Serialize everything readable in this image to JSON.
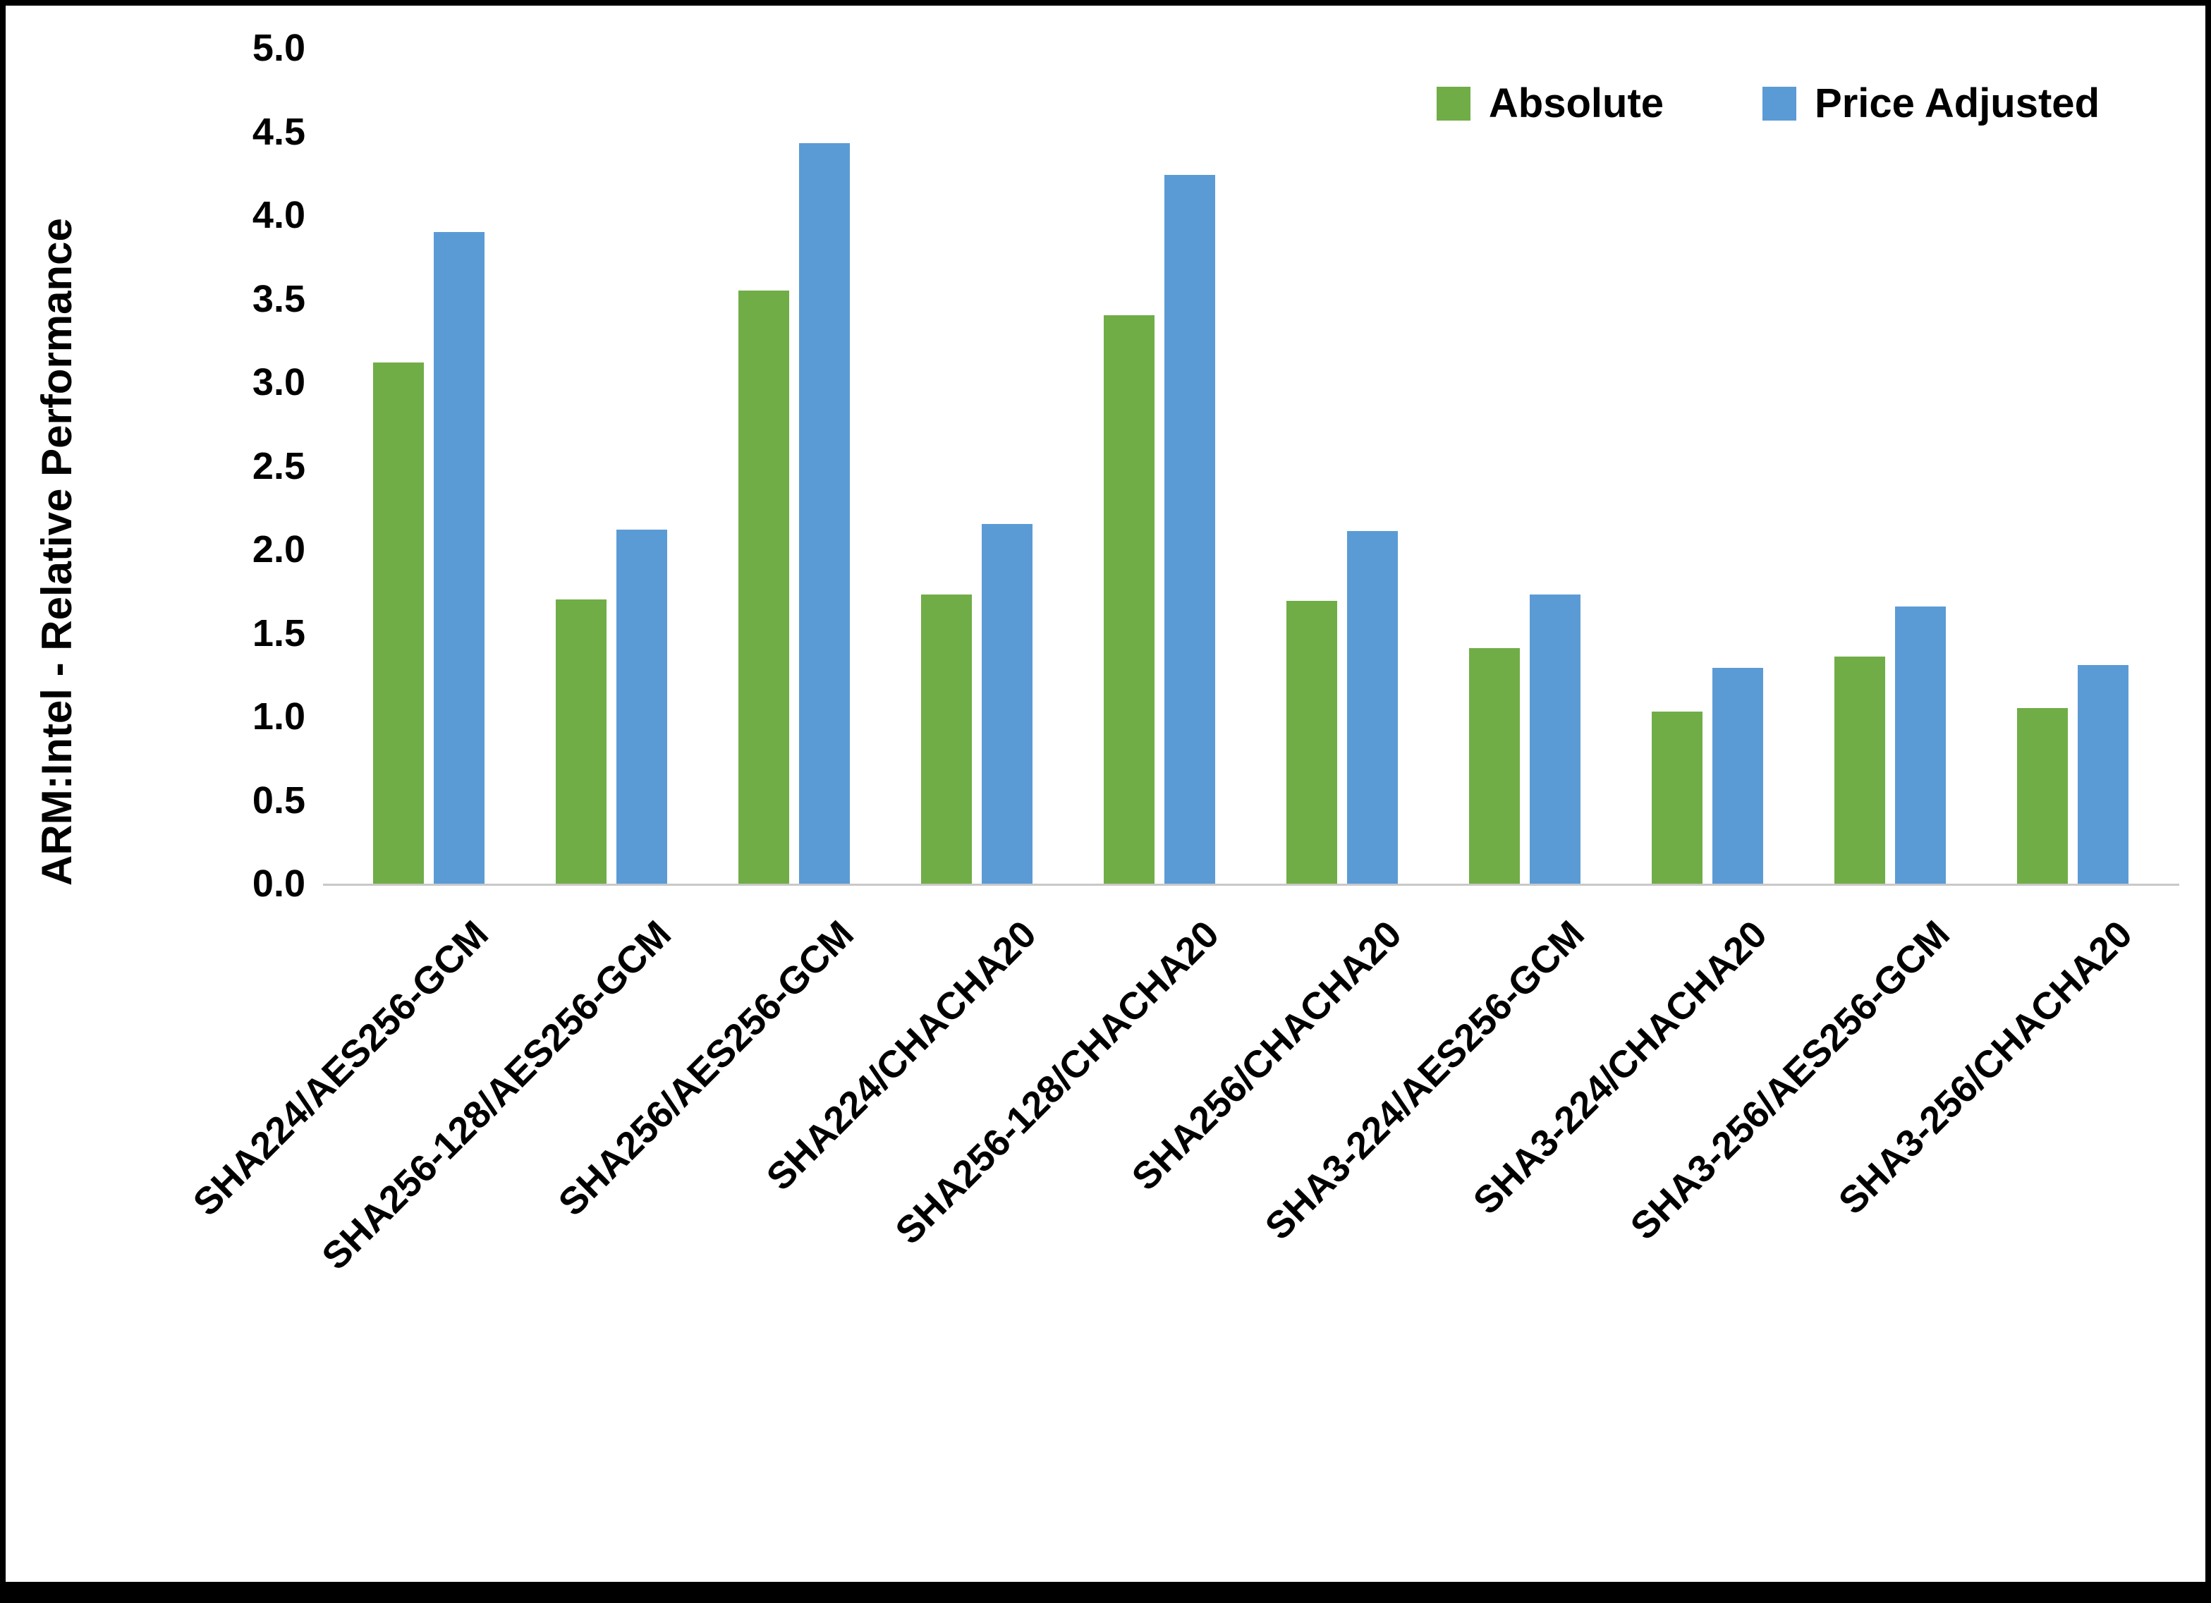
{
  "chart_data": {
    "type": "bar",
    "title": "",
    "xlabel": "",
    "ylabel": "ARM:Intel - Relative Performance",
    "ylim": [
      0,
      5
    ],
    "ytick_step": 0.5,
    "yticks": [
      "0.0",
      "0.5",
      "1.0",
      "1.5",
      "2.0",
      "2.5",
      "3.0",
      "3.5",
      "4.0",
      "4.5",
      "5.0"
    ],
    "grid": false,
    "legend_position": "top-right",
    "categories": [
      "SHA224/AES256-GCM",
      "SHA256-128/AES256-GCM",
      "SHA256/AES256-GCM",
      "SHA224/CHACHA20",
      "SHA256-128/CHACHA20",
      "SHA256/CHACHA20",
      "SHA3-224/AES256-GCM",
      "SHA3-224/CHACHA20",
      "SHA3-256/AES256-GCM",
      "SHA3-256/CHACHA20"
    ],
    "series": [
      {
        "name": "Absolute",
        "color": "#70AD47",
        "values": [
          3.12,
          1.7,
          3.55,
          1.73,
          3.4,
          1.69,
          1.41,
          1.03,
          1.36,
          1.05
        ]
      },
      {
        "name": "Price Adjusted",
        "color": "#5B9BD5",
        "values": [
          3.9,
          2.12,
          4.43,
          2.15,
          4.24,
          2.11,
          1.73,
          1.29,
          1.66,
          1.31
        ]
      }
    ]
  }
}
